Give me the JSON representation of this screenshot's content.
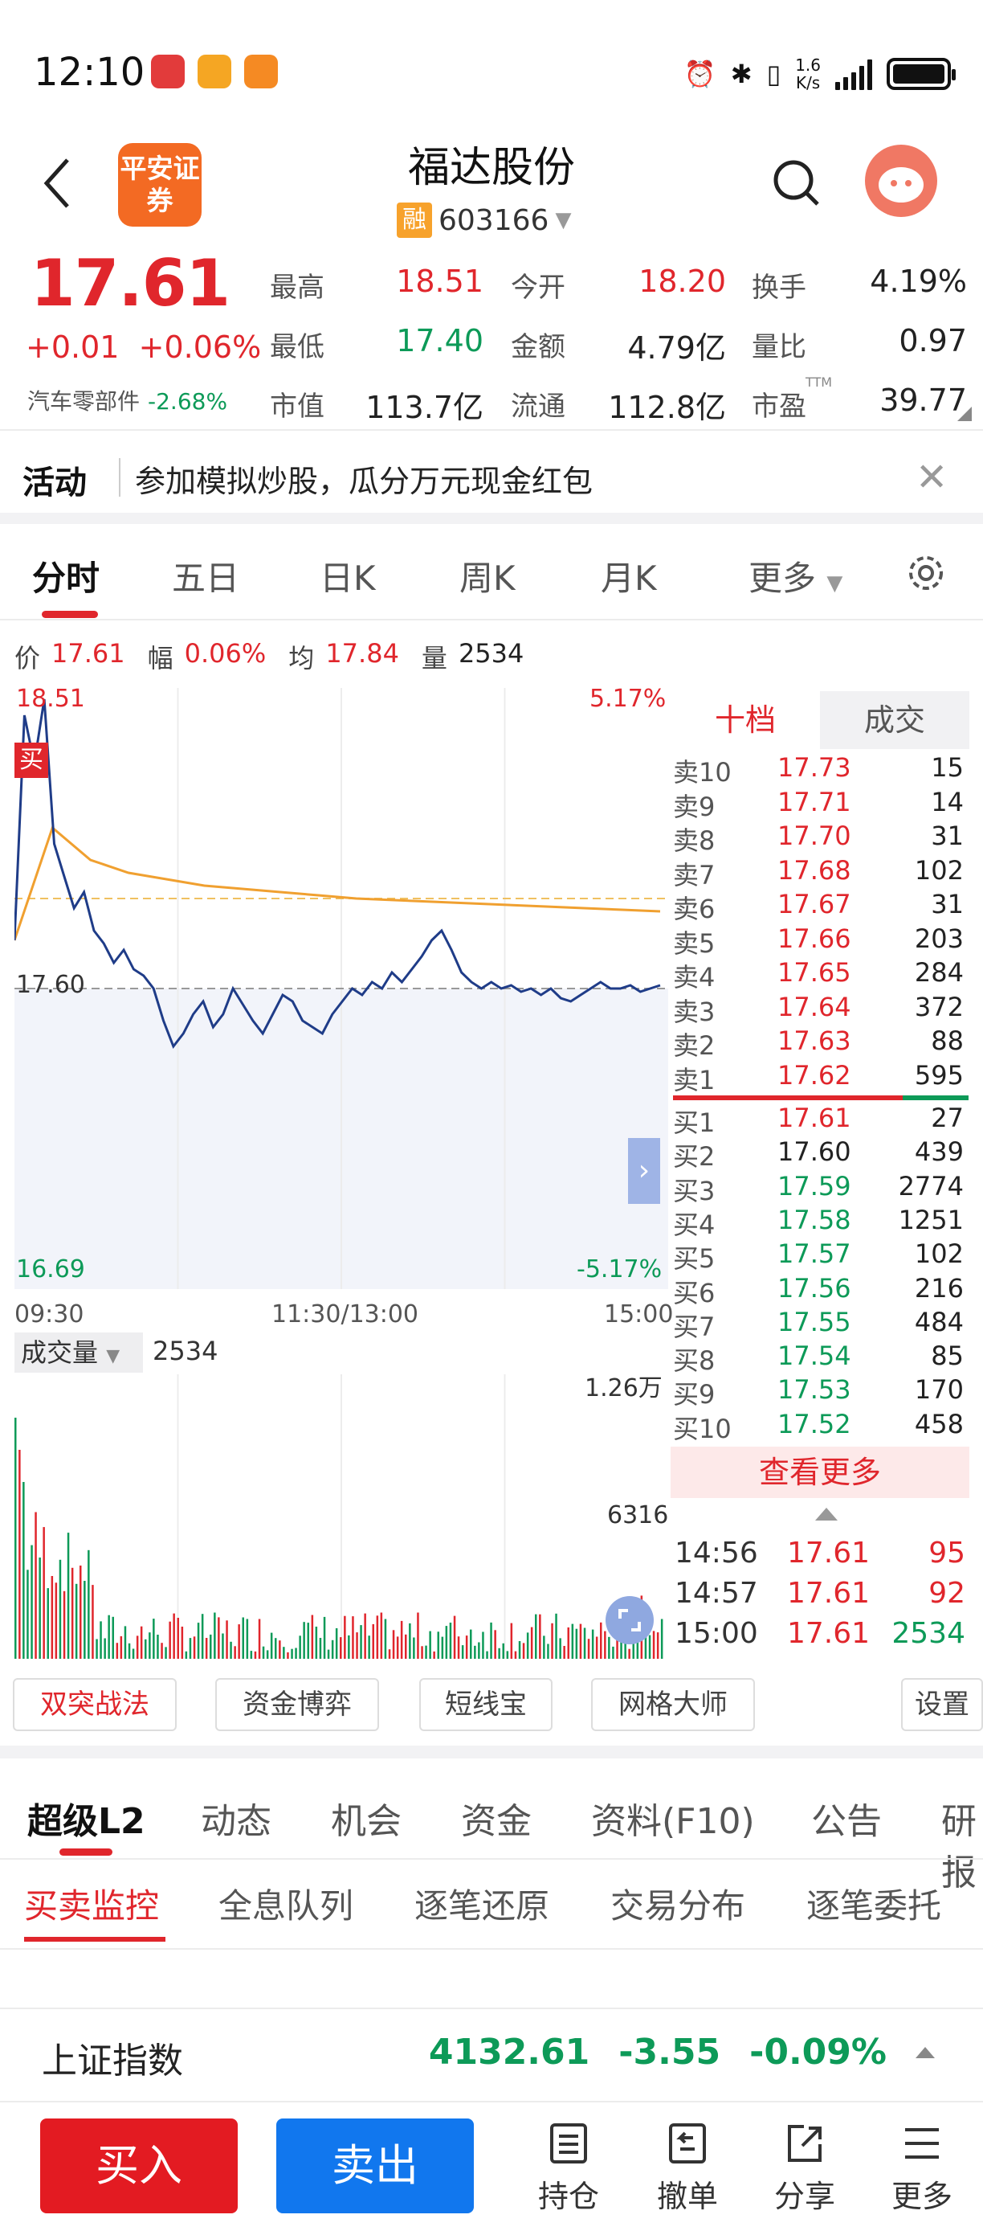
{
  "status": {
    "time": "12:10",
    "net_speed_top": "1.6",
    "net_speed_bottom": "K/s"
  },
  "header": {
    "title": "福达股份",
    "code": "603166",
    "rong": "融",
    "logo_text": "平安证券"
  },
  "quote": {
    "price": "17.61",
    "change": "+0.01",
    "change_pct": "+0.06%",
    "sector": "汽车零部件",
    "sector_chg": "-2.68%",
    "high_l": "最高",
    "high": "18.51",
    "open_l": "今开",
    "open": "18.20",
    "turn_l": "换手",
    "turn": "4.19%",
    "low_l": "最低",
    "low": "17.40",
    "amt_l": "金额",
    "amt": "4.79亿",
    "vr_l": "量比",
    "vr": "0.97",
    "mcap_l": "市值",
    "mcap": "113.7亿",
    "float_l": "流通",
    "float": "112.8亿",
    "pe_l": "市盈",
    "pe_ttm": "TTM",
    "pe": "39.77"
  },
  "activity": {
    "label": "活动",
    "text": "参加模拟炒股，瓜分万元现金红包"
  },
  "chart_tabs": [
    "分时",
    "五日",
    "日K",
    "周K",
    "月K",
    "更多"
  ],
  "info_row": {
    "p_l": "价",
    "p": "17.61",
    "f_l": "幅",
    "f": "0.06%",
    "a_l": "均",
    "a": "17.84",
    "v_l": "量",
    "v": "2534"
  },
  "chart_labels": {
    "high": "18.51",
    "high_pct": "5.17%",
    "mid": "17.60",
    "low": "16.69",
    "low_pct": "-5.17%",
    "t_start": "09:30",
    "t_mid": "11:30/13:00",
    "t_end": "15:00",
    "buy_tag": "买",
    "vol_label": "成交量",
    "vol_value": "2534",
    "vol_max": "1.26万",
    "vol_mid": "6316"
  },
  "chart_data": {
    "type": "line",
    "ylim": [
      16.69,
      18.51
    ],
    "prev_close": 17.6,
    "series": [
      {
        "values": [
          17.75,
          18.45,
          18.3,
          18.5,
          18.05,
          17.95,
          17.85,
          17.9,
          17.78,
          17.74,
          17.68,
          17.72,
          17.66,
          17.64,
          17.6,
          17.5,
          17.42,
          17.46,
          17.52,
          17.56,
          17.48,
          17.52,
          17.6,
          17.55,
          17.5,
          17.46,
          17.52,
          17.58,
          17.56,
          17.5,
          17.48,
          17.46,
          17.52,
          17.56,
          17.6,
          17.58,
          17.62,
          17.6,
          17.65,
          17.62,
          17.66,
          17.7,
          17.75,
          17.78,
          17.72,
          17.65,
          17.62,
          17.6,
          17.62,
          17.6,
          17.61,
          17.59,
          17.6,
          17.58,
          17.6,
          17.57,
          17.56,
          17.58,
          17.6,
          17.62,
          17.6,
          17.6,
          17.61,
          17.59,
          17.6,
          17.61
        ]
      },
      {
        "values": [
          17.75,
          18.1,
          18.0,
          17.96,
          17.94,
          17.92,
          17.91,
          17.9,
          17.89,
          17.88,
          17.875,
          17.87,
          17.865,
          17.86,
          17.855,
          17.85,
          17.845,
          17.84
        ]
      }
    ]
  },
  "order_book": {
    "tab1": "十档",
    "tab2": "成交",
    "sells": [
      {
        "label": "卖10",
        "price": "17.73",
        "vol": "15"
      },
      {
        "label": "卖9",
        "price": "17.71",
        "vol": "14"
      },
      {
        "label": "卖8",
        "price": "17.70",
        "vol": "31"
      },
      {
        "label": "卖7",
        "price": "17.68",
        "vol": "102"
      },
      {
        "label": "卖6",
        "price": "17.67",
        "vol": "31"
      },
      {
        "label": "卖5",
        "price": "17.66",
        "vol": "203"
      },
      {
        "label": "卖4",
        "price": "17.65",
        "vol": "284"
      },
      {
        "label": "卖3",
        "price": "17.64",
        "vol": "372"
      },
      {
        "label": "卖2",
        "price": "17.63",
        "vol": "88"
      },
      {
        "label": "卖1",
        "price": "17.62",
        "vol": "595"
      }
    ],
    "buys": [
      {
        "label": "买1",
        "price": "17.61",
        "vol": "27"
      },
      {
        "label": "买2",
        "price": "17.60",
        "vol": "439"
      },
      {
        "label": "买3",
        "price": "17.59",
        "vol": "2774"
      },
      {
        "label": "买4",
        "price": "17.58",
        "vol": "1251"
      },
      {
        "label": "买5",
        "price": "17.57",
        "vol": "102"
      },
      {
        "label": "买6",
        "price": "17.56",
        "vol": "216"
      },
      {
        "label": "买7",
        "price": "17.55",
        "vol": "484"
      },
      {
        "label": "买8",
        "price": "17.54",
        "vol": "85"
      },
      {
        "label": "买9",
        "price": "17.53",
        "vol": "170"
      },
      {
        "label": "买10",
        "price": "17.52",
        "vol": "458"
      }
    ],
    "more": "查看更多"
  },
  "trades": [
    {
      "time": "14:56",
      "price": "17.61",
      "vol": "95"
    },
    {
      "time": "14:57",
      "price": "17.61",
      "vol": "92"
    },
    {
      "time": "15:00",
      "price": "17.61",
      "vol": "2534"
    }
  ],
  "tools": [
    "双突战法",
    "资金博弈",
    "短线宝",
    "网格大师",
    "设置"
  ],
  "tabs2": [
    "超级L2",
    "动态",
    "机会",
    "资金",
    "资料(F10)",
    "公告",
    "研报"
  ],
  "tabs3": [
    "买卖监控",
    "全息队列",
    "逐笔还原",
    "交易分布",
    "逐笔委托"
  ],
  "index": {
    "name": "上证指数",
    "value": "4132.61",
    "change": "-3.55",
    "pct": "-0.09%"
  },
  "bottom": {
    "buy": "买入",
    "sell": "卖出",
    "nav": [
      "持仓",
      "撤单",
      "分享",
      "更多"
    ]
  },
  "colors": {
    "up": "#e0262c",
    "down": "#0d9a58",
    "avg_line": "#f0a030",
    "price_line": "#1f3c88"
  }
}
